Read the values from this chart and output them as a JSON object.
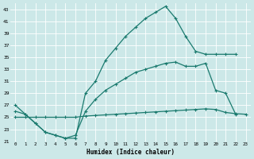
{
  "xlabel": "Humidex (Indice chaleur)",
  "bg_color": "#cce8e8",
  "grid_color": "#b8d8d8",
  "line_color": "#1a7a6e",
  "ylim": [
    21,
    44
  ],
  "xlim": [
    -0.5,
    23.5
  ],
  "yticks": [
    21,
    23,
    25,
    27,
    29,
    31,
    33,
    35,
    37,
    39,
    41,
    43
  ],
  "xticks": [
    0,
    1,
    2,
    3,
    4,
    5,
    6,
    7,
    8,
    9,
    10,
    11,
    12,
    13,
    14,
    15,
    16,
    17,
    18,
    19,
    20,
    21,
    22,
    23
  ],
  "line1_x": [
    0,
    1,
    2,
    3,
    4,
    5,
    6,
    7,
    8,
    9,
    10,
    11,
    12,
    13,
    14,
    15,
    16,
    17,
    18,
    19,
    20,
    21,
    22,
    23
  ],
  "line1_y": [
    25.0,
    25.0,
    25.0,
    25.0,
    25.0,
    25.0,
    25.0,
    25.2,
    25.3,
    25.4,
    25.5,
    25.6,
    25.7,
    25.8,
    25.9,
    26.0,
    26.1,
    26.2,
    26.3,
    26.4,
    26.3,
    25.8,
    25.6,
    25.5
  ],
  "line2_x": [
    0,
    1,
    2,
    3,
    4,
    5,
    6,
    7,
    8,
    9,
    10,
    11,
    12,
    13,
    14,
    15,
    16,
    17,
    18,
    19,
    20,
    21,
    22
  ],
  "line2_y": [
    26.0,
    25.5,
    24.0,
    22.5,
    22.0,
    21.5,
    22.0,
    26.0,
    28.0,
    29.5,
    30.5,
    31.5,
    32.5,
    33.0,
    33.5,
    34.0,
    34.2,
    33.5,
    33.5,
    34.0,
    29.5,
    29.0,
    25.5
  ],
  "line3_x": [
    0,
    1,
    2,
    3,
    4,
    5,
    6,
    7,
    8,
    9,
    10,
    11,
    12,
    13,
    14,
    15,
    16,
    17,
    18,
    19,
    20,
    21,
    22
  ],
  "line3_y": [
    27.0,
    25.5,
    24.0,
    22.5,
    22.0,
    21.5,
    21.5,
    29.0,
    31.0,
    34.5,
    36.5,
    38.5,
    40.0,
    41.5,
    42.5,
    43.5,
    41.5,
    38.5,
    36.0,
    35.5,
    35.5,
    35.5,
    35.5
  ]
}
